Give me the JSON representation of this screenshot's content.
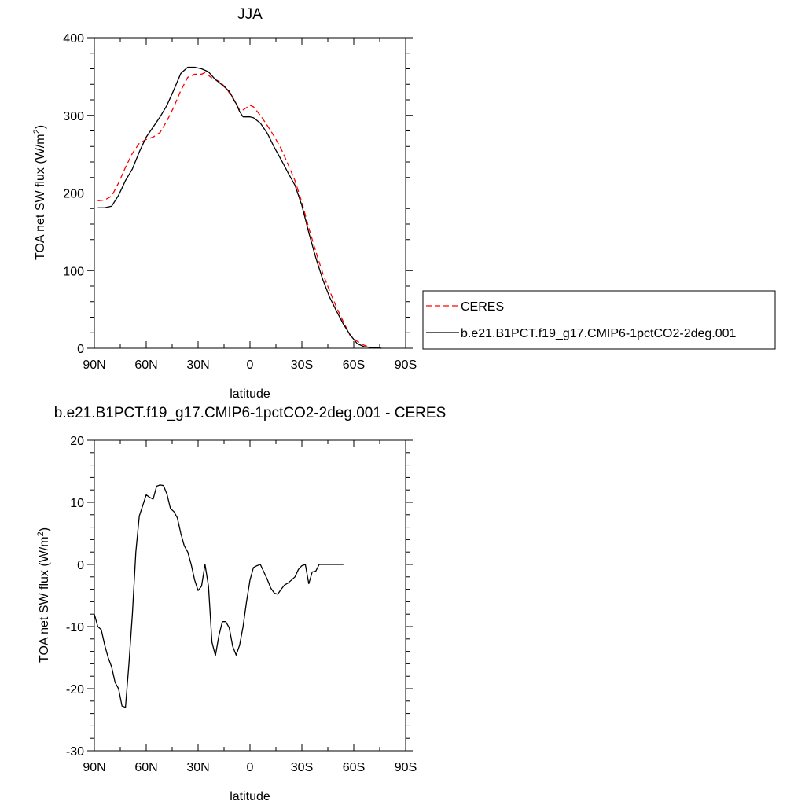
{
  "chart_data": [
    {
      "type": "line",
      "title": "JJA",
      "xlabel": "latitude",
      "ylabel": "TOA net SW flux (W/m",
      "ylabel_sup": "2",
      "ylabel_close": ")",
      "xlim": [
        90,
        -90
      ],
      "ylim": [
        0,
        400
      ],
      "xticks": [
        90,
        60,
        30,
        0,
        -30,
        -60,
        -90
      ],
      "xtick_labels": [
        "90N",
        "60N",
        "30N",
        "0",
        "30S",
        "60S",
        "90S"
      ],
      "yticks": [
        0,
        100,
        200,
        300,
        400
      ],
      "ytick_labels": [
        "0",
        "100",
        "200",
        "300",
        "400"
      ],
      "grid": false,
      "legend_position": "right",
      "series": [
        {
          "name": "CERES",
          "color": "#ff0000",
          "dash": true,
          "points": [
            [
              88,
              190
            ],
            [
              84,
              191
            ],
            [
              80,
              196
            ],
            [
              76,
              213
            ],
            [
              72,
              233
            ],
            [
              68,
              251
            ],
            [
              64,
              264
            ],
            [
              60,
              269
            ],
            [
              56,
              272
            ],
            [
              52,
              278
            ],
            [
              48,
              293
            ],
            [
              44,
              311
            ],
            [
              40,
              332
            ],
            [
              36,
              349
            ],
            [
              32,
              353
            ],
            [
              28,
              353
            ],
            [
              26,
              355
            ],
            [
              22,
              348
            ],
            [
              18,
              344
            ],
            [
              14,
              336
            ],
            [
              10,
              322
            ],
            [
              6,
              307
            ],
            [
              4,
              307
            ],
            [
              2,
              310
            ],
            [
              0,
              313
            ],
            [
              -2,
              311
            ],
            [
              -6,
              300
            ],
            [
              -10,
              287
            ],
            [
              -14,
              273
            ],
            [
              -18,
              257
            ],
            [
              -22,
              237
            ],
            [
              -26,
              216
            ],
            [
              -30,
              188
            ],
            [
              -34,
              155
            ],
            [
              -38,
              125
            ],
            [
              -42,
              97
            ],
            [
              -46,
              74
            ],
            [
              -50,
              53
            ],
            [
              -54,
              34
            ],
            [
              -58,
              16
            ],
            [
              -62,
              9
            ],
            [
              -66,
              4
            ],
            [
              -70,
              1
            ],
            [
              -76,
              0
            ]
          ]
        },
        {
          "name": "b.e21.B1PCT.f19_g17.CMIP6-1pctCO2-2deg.001",
          "color": "#000000",
          "dash": false,
          "points": [
            [
              88,
              181
            ],
            [
              84,
              181
            ],
            [
              80,
              183
            ],
            [
              76,
              197
            ],
            [
              72,
              216
            ],
            [
              68,
              231
            ],
            [
              64,
              253
            ],
            [
              60,
              272
            ],
            [
              56,
              285
            ],
            [
              52,
              298
            ],
            [
              48,
              313
            ],
            [
              44,
              333
            ],
            [
              40,
              354
            ],
            [
              36,
              362
            ],
            [
              32,
              362
            ],
            [
              28,
              360
            ],
            [
              24,
              356
            ],
            [
              20,
              346
            ],
            [
              16,
              339
            ],
            [
              12,
              331
            ],
            [
              8,
              315
            ],
            [
              6,
              305
            ],
            [
              4,
              298
            ],
            [
              0,
              298
            ],
            [
              -2,
              297
            ],
            [
              -6,
              290
            ],
            [
              -10,
              277
            ],
            [
              -14,
              259
            ],
            [
              -18,
              243
            ],
            [
              -22,
              226
            ],
            [
              -26,
              210
            ],
            [
              -30,
              184
            ],
            [
              -34,
              149
            ],
            [
              -38,
              117
            ],
            [
              -42,
              89
            ],
            [
              -46,
              66
            ],
            [
              -50,
              48
            ],
            [
              -54,
              31
            ],
            [
              -58,
              17
            ],
            [
              -62,
              6
            ],
            [
              -66,
              2
            ],
            [
              -70,
              1
            ],
            [
              -76,
              0
            ]
          ]
        }
      ]
    },
    {
      "type": "line",
      "title": "b.e21.B1PCT.f19_g17.CMIP6-1pctCO2-2deg.001 - CERES",
      "xlabel": "latitude",
      "ylabel": "TOA net SW flux (W/m",
      "ylabel_sup": "2",
      "ylabel_close": ")",
      "xlim": [
        90,
        -90
      ],
      "ylim": [
        -30,
        20
      ],
      "xticks": [
        90,
        60,
        30,
        0,
        -30,
        -60,
        -90
      ],
      "xtick_labels": [
        "90N",
        "60N",
        "30N",
        "0",
        "30S",
        "60S",
        "90S"
      ],
      "yticks": [
        -30,
        -20,
        -10,
        0,
        10,
        20
      ],
      "ytick_labels": [
        "-30",
        "-20",
        "-10",
        "0",
        "10",
        "20"
      ],
      "grid": false,
      "series": [
        {
          "color": "#000000",
          "dash": false,
          "points": [
            [
              90,
              -8
            ],
            [
              88,
              -10
            ],
            [
              86,
              -10.5
            ],
            [
              84,
              -13
            ],
            [
              82,
              -15
            ],
            [
              80,
              -16.5
            ],
            [
              78,
              -19
            ],
            [
              76,
              -20
            ],
            [
              74,
              -22.8
            ],
            [
              72,
              -23
            ],
            [
              70,
              -16
            ],
            [
              68,
              -8
            ],
            [
              66,
              2
            ],
            [
              64,
              7.8
            ],
            [
              62,
              9.5
            ],
            [
              60,
              11.2
            ],
            [
              58,
              10.8
            ],
            [
              56,
              10.5
            ],
            [
              54,
              12.6
            ],
            [
              52,
              12.8
            ],
            [
              50,
              12.7
            ],
            [
              48,
              11.3
            ],
            [
              46,
              9
            ],
            [
              44,
              8.5
            ],
            [
              42,
              7.5
            ],
            [
              40,
              5
            ],
            [
              38,
              3
            ],
            [
              36,
              2
            ],
            [
              34,
              0
            ],
            [
              32,
              -2.5
            ],
            [
              30,
              -4.2
            ],
            [
              28,
              -3.5
            ],
            [
              26,
              0
            ],
            [
              24,
              -3.5
            ],
            [
              22,
              -12.5
            ],
            [
              20,
              -14.7
            ],
            [
              18,
              -11.5
            ],
            [
              16,
              -9.2
            ],
            [
              14,
              -9.2
            ],
            [
              12,
              -10.2
            ],
            [
              10,
              -13.2
            ],
            [
              8,
              -14.6
            ],
            [
              6,
              -13
            ],
            [
              4,
              -10
            ],
            [
              2,
              -6
            ],
            [
              0,
              -2.5
            ],
            [
              -2,
              -0.5
            ],
            [
              -4,
              -0.2
            ],
            [
              -6,
              0
            ],
            [
              -8,
              -1.2
            ],
            [
              -10,
              -2.4
            ],
            [
              -12,
              -3.8
            ],
            [
              -14,
              -4.6
            ],
            [
              -16,
              -4.8
            ],
            [
              -18,
              -4
            ],
            [
              -20,
              -3.3
            ],
            [
              -22,
              -3
            ],
            [
              -24,
              -2.5
            ],
            [
              -26,
              -2
            ],
            [
              -28,
              -0.8
            ],
            [
              -30,
              -0.2
            ],
            [
              -32,
              0
            ],
            [
              -34,
              -3.1
            ],
            [
              -36,
              -1.2
            ],
            [
              -38,
              -1.1
            ],
            [
              -40,
              0
            ],
            [
              -44,
              0
            ],
            [
              -50,
              0
            ],
            [
              -54,
              0
            ]
          ]
        }
      ]
    }
  ]
}
